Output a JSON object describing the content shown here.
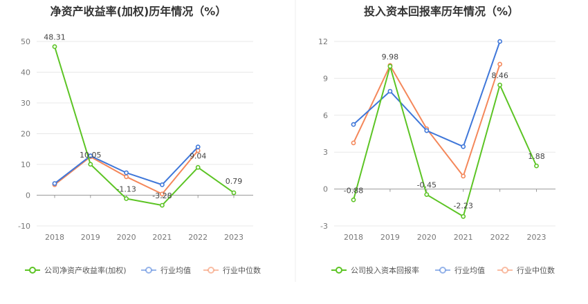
{
  "chart_data": [
    {
      "type": "line",
      "title": "净资产收益率(加权)历年情况（%）",
      "categories": [
        "2018",
        "2019",
        "2020",
        "2021",
        "2022",
        "2023"
      ],
      "ylim": [
        -10,
        50
      ],
      "yticks": [
        -10,
        0,
        10,
        20,
        30,
        40,
        50
      ],
      "grid": true,
      "legend_position": "bottom-left",
      "series": [
        {
          "name": "公司净资产收益率(加权)",
          "color": "#5cc424",
          "values": [
            48.31,
            10.05,
            -1.13,
            -3.28,
            9.04,
            0.79
          ],
          "labels": [
            "48.31",
            "10.05",
            "-1.13",
            "-3.28",
            "9.04",
            "0.79"
          ]
        },
        {
          "name": "行业均值",
          "color": "#3f77d9",
          "values": [
            3.8,
            12.8,
            7.3,
            3.4,
            15.7,
            null
          ]
        },
        {
          "name": "行业中位数",
          "color": "#f4875a",
          "values": [
            3.4,
            12.5,
            6.0,
            0.4,
            14.5,
            null
          ]
        }
      ]
    },
    {
      "type": "line",
      "title": "投入资本回报率历年情况（%）",
      "categories": [
        "2018",
        "2019",
        "2020",
        "2021",
        "2022",
        "2023"
      ],
      "ylim": [
        -3,
        12
      ],
      "yticks": [
        -3,
        0,
        3,
        6,
        9,
        12
      ],
      "grid": true,
      "legend_position": "bottom-left",
      "series": [
        {
          "name": "公司投入资本回报率",
          "color": "#5cc424",
          "values": [
            -0.88,
            9.98,
            -0.45,
            -2.23,
            8.46,
            1.88
          ],
          "labels": [
            "-0.88",
            "9.98",
            "-0.45",
            "-2.23",
            "8.46",
            "1.88"
          ]
        },
        {
          "name": "行业均值",
          "color": "#3f77d9",
          "values": [
            5.25,
            7.95,
            4.75,
            3.45,
            12.0,
            null
          ]
        },
        {
          "name": "行业中位数",
          "color": "#f4875a",
          "values": [
            3.75,
            10.05,
            4.9,
            1.05,
            10.15,
            null
          ]
        }
      ]
    }
  ]
}
